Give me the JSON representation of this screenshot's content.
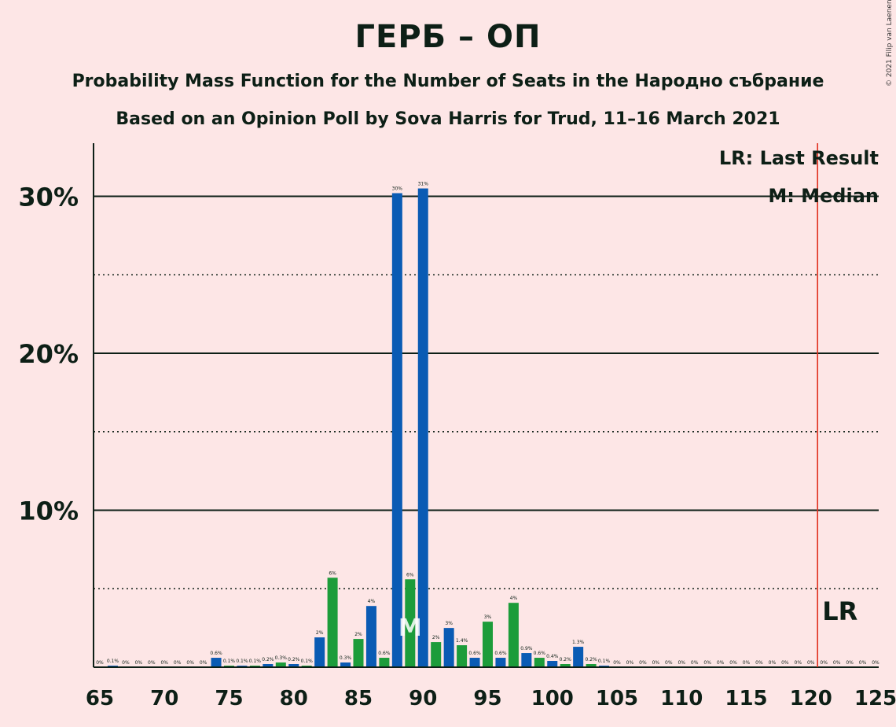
{
  "title": "ГЕРБ – ОП",
  "subtitle": "Probability Mass Function for the Number of Seats in the Народно събрание",
  "subtitle2": "Based on an Opinion Poll by Sova Harris for Trud, 11–16 March 2021",
  "copyright": "© 2021 Filip van Laenen",
  "colors": {
    "blue": "#0a5bb4",
    "green": "#1c9c3a",
    "lr_line": "#e0301e",
    "background": "#fde6e6"
  },
  "chart_data": {
    "type": "bar",
    "xlim": [
      65,
      125
    ],
    "ylim": [
      0,
      33
    ],
    "x_ticks": [
      65,
      70,
      75,
      80,
      85,
      90,
      95,
      100,
      105,
      110,
      115,
      120,
      125
    ],
    "y_ticks": [
      {
        "value": 10,
        "label": "10%"
      },
      {
        "value": 20,
        "label": "20%"
      },
      {
        "value": 30,
        "label": "30%"
      }
    ],
    "minor_gridlines": [
      5,
      15,
      25
    ],
    "last_result": 121,
    "median": 89,
    "legend": {
      "lr": "LR: Last Result",
      "m": "M: Median"
    },
    "lr_label": "LR",
    "median_label": "M",
    "bars": [
      {
        "x": 65,
        "value": 0,
        "label": "0%"
      },
      {
        "x": 66,
        "value": 0.1,
        "label": "0.1%"
      },
      {
        "x": 67,
        "value": 0,
        "label": "0%"
      },
      {
        "x": 68,
        "value": 0,
        "label": "0%"
      },
      {
        "x": 69,
        "value": 0,
        "label": "0%"
      },
      {
        "x": 70,
        "value": 0,
        "label": "0%"
      },
      {
        "x": 71,
        "value": 0,
        "label": "0%"
      },
      {
        "x": 72,
        "value": 0,
        "label": "0%"
      },
      {
        "x": 73,
        "value": 0,
        "label": "0%"
      },
      {
        "x": 74,
        "value": 0.6,
        "label": "0.6%"
      },
      {
        "x": 75,
        "value": 0.1,
        "label": "0.1%"
      },
      {
        "x": 76,
        "value": 0.1,
        "label": "0.1%"
      },
      {
        "x": 77,
        "value": 0.1,
        "label": "0.1%"
      },
      {
        "x": 78,
        "value": 0.2,
        "label": "0.2%"
      },
      {
        "x": 79,
        "value": 0.3,
        "label": "0.3%"
      },
      {
        "x": 80,
        "value": 0.2,
        "label": "0.2%"
      },
      {
        "x": 81,
        "value": 0.1,
        "label": "0.1%"
      },
      {
        "x": 82,
        "value": 1.9,
        "label": "2%"
      },
      {
        "x": 83,
        "value": 5.7,
        "label": "6%"
      },
      {
        "x": 84,
        "value": 0.3,
        "label": "0.3%"
      },
      {
        "x": 85,
        "value": 1.8,
        "label": "2%"
      },
      {
        "x": 86,
        "value": 3.9,
        "label": "4%"
      },
      {
        "x": 87,
        "value": 0.6,
        "label": "0.6%"
      },
      {
        "x": 88,
        "value": 30.2,
        "label": "30%"
      },
      {
        "x": 89,
        "value": 5.6,
        "label": "6%"
      },
      {
        "x": 90,
        "value": 30.5,
        "label": "31%"
      },
      {
        "x": 91,
        "value": 1.6,
        "label": "2%"
      },
      {
        "x": 92,
        "value": 2.5,
        "label": "3%"
      },
      {
        "x": 93,
        "value": 1.4,
        "label": "1.4%"
      },
      {
        "x": 94,
        "value": 0.6,
        "label": "0.6%"
      },
      {
        "x": 95,
        "value": 2.9,
        "label": "3%"
      },
      {
        "x": 96,
        "value": 0.6,
        "label": "0.6%"
      },
      {
        "x": 97,
        "value": 4.1,
        "label": "4%"
      },
      {
        "x": 98,
        "value": 0.9,
        "label": "0.9%"
      },
      {
        "x": 99,
        "value": 0.6,
        "label": "0.6%"
      },
      {
        "x": 100,
        "value": 0.4,
        "label": "0.4%"
      },
      {
        "x": 101,
        "value": 0.2,
        "label": "0.2%"
      },
      {
        "x": 102,
        "value": 1.3,
        "label": "1.3%"
      },
      {
        "x": 103,
        "value": 0.2,
        "label": "0.2%"
      },
      {
        "x": 104,
        "value": 0.1,
        "label": "0.1%"
      },
      {
        "x": 105,
        "value": 0,
        "label": "0%"
      },
      {
        "x": 106,
        "value": 0,
        "label": "0%"
      },
      {
        "x": 107,
        "value": 0,
        "label": "0%"
      },
      {
        "x": 108,
        "value": 0,
        "label": "0%"
      },
      {
        "x": 109,
        "value": 0,
        "label": "0%"
      },
      {
        "x": 110,
        "value": 0,
        "label": "0%"
      },
      {
        "x": 111,
        "value": 0,
        "label": "0%"
      },
      {
        "x": 112,
        "value": 0,
        "label": "0%"
      },
      {
        "x": 113,
        "value": 0,
        "label": "0%"
      },
      {
        "x": 114,
        "value": 0,
        "label": "0%"
      },
      {
        "x": 115,
        "value": 0,
        "label": "0%"
      },
      {
        "x": 116,
        "value": 0,
        "label": "0%"
      },
      {
        "x": 117,
        "value": 0,
        "label": "0%"
      },
      {
        "x": 118,
        "value": 0,
        "label": "0%"
      },
      {
        "x": 119,
        "value": 0,
        "label": "0%"
      },
      {
        "x": 120,
        "value": 0,
        "label": "0%"
      },
      {
        "x": 121,
        "value": 0,
        "label": "0%"
      },
      {
        "x": 122,
        "value": 0,
        "label": "0%"
      },
      {
        "x": 123,
        "value": 0,
        "label": "0%"
      },
      {
        "x": 124,
        "value": 0,
        "label": "0%"
      },
      {
        "x": 125,
        "value": 0,
        "label": "0%"
      }
    ]
  }
}
